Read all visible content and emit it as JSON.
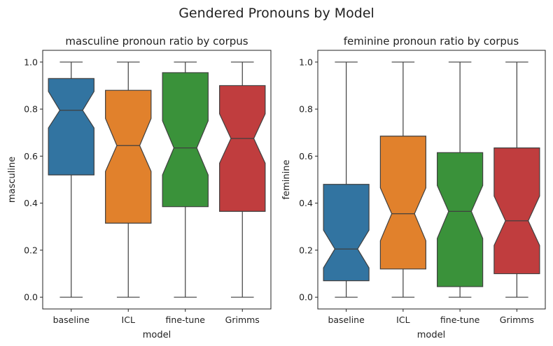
{
  "title": "Gendered Pronouns by Model",
  "chart_data": [
    {
      "type": "box",
      "notched": true,
      "title": "masculine pronoun ratio by corpus",
      "xlabel": "model",
      "ylabel": "masculine",
      "ylim": [
        -0.05,
        1.05
      ],
      "yticks": [
        "0.0",
        "0.2",
        "0.4",
        "0.6",
        "0.8",
        "1.0"
      ],
      "categories": [
        "baseline",
        "ICL",
        "fine-tune",
        "Grimms"
      ],
      "colors": [
        "#3274a1",
        "#e1812c",
        "#3a923a",
        "#c03d3e"
      ],
      "boxes": [
        {
          "whisker_low": 0.0,
          "q1": 0.52,
          "notch_low": 0.72,
          "median": 0.795,
          "notch_high": 0.875,
          "q3": 0.93,
          "whisker_high": 1.0
        },
        {
          "whisker_low": 0.0,
          "q1": 0.315,
          "notch_low": 0.535,
          "median": 0.645,
          "notch_high": 0.76,
          "q3": 0.88,
          "whisker_high": 1.0
        },
        {
          "whisker_low": 0.0,
          "q1": 0.385,
          "notch_low": 0.52,
          "median": 0.635,
          "notch_high": 0.75,
          "q3": 0.955,
          "whisker_high": 1.0
        },
        {
          "whisker_low": 0.0,
          "q1": 0.365,
          "notch_low": 0.57,
          "median": 0.675,
          "notch_high": 0.78,
          "q3": 0.9,
          "whisker_high": 1.0
        }
      ]
    },
    {
      "type": "box",
      "notched": true,
      "title": "feminine pronoun ratio by corpus",
      "xlabel": "model",
      "ylabel": "feminine",
      "ylim": [
        -0.05,
        1.05
      ],
      "yticks": [
        "0.0",
        "0.2",
        "0.4",
        "0.6",
        "0.8",
        "1.0"
      ],
      "categories": [
        "baseline",
        "ICL",
        "fine-tune",
        "Grimms"
      ],
      "colors": [
        "#3274a1",
        "#e1812c",
        "#3a923a",
        "#c03d3e"
      ],
      "boxes": [
        {
          "whisker_low": 0.0,
          "q1": 0.07,
          "notch_low": 0.125,
          "median": 0.205,
          "notch_high": 0.285,
          "q3": 0.48,
          "whisker_high": 1.0
        },
        {
          "whisker_low": 0.0,
          "q1": 0.12,
          "notch_low": 0.24,
          "median": 0.355,
          "notch_high": 0.465,
          "q3": 0.685,
          "whisker_high": 1.0
        },
        {
          "whisker_low": 0.0,
          "q1": 0.045,
          "notch_low": 0.25,
          "median": 0.365,
          "notch_high": 0.475,
          "q3": 0.615,
          "whisker_high": 1.0
        },
        {
          "whisker_low": 0.0,
          "q1": 0.1,
          "notch_low": 0.22,
          "median": 0.325,
          "notch_high": 0.43,
          "q3": 0.635,
          "whisker_high": 1.0
        }
      ]
    }
  ]
}
